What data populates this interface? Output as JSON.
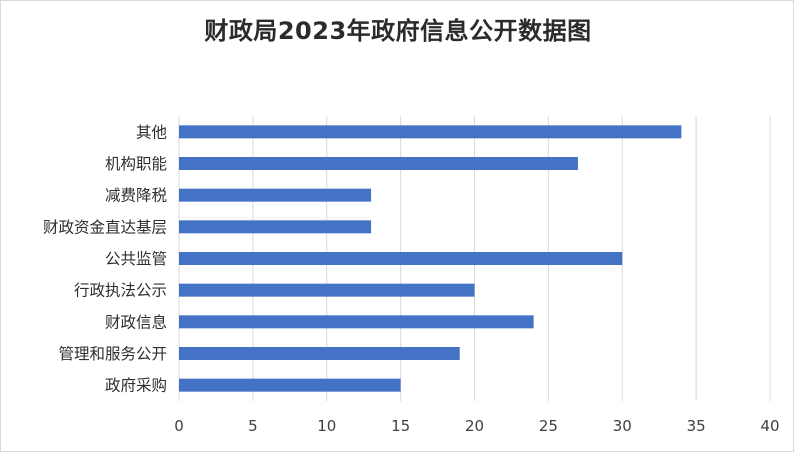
{
  "chart_data": {
    "type": "bar",
    "orientation": "horizontal",
    "title": "财政局2023年政府信息公开数据图",
    "categories": [
      "其他",
      "机构职能",
      "减费降税",
      "财政资金直达基层",
      "公共监管",
      "行政执法公示",
      "财政信息",
      "管理和服务公开",
      "政府采购"
    ],
    "values": [
      34,
      27,
      13,
      13,
      30,
      20,
      24,
      19,
      15
    ],
    "xlim": [
      0,
      40
    ],
    "xticks": [
      0,
      5,
      10,
      15,
      20,
      25,
      30,
      35,
      40
    ],
    "xlabel": "",
    "ylabel": "",
    "grid": "vertical",
    "legend": "none",
    "bar_color": "#4472c4",
    "grid_color": "#d9d9d9"
  }
}
